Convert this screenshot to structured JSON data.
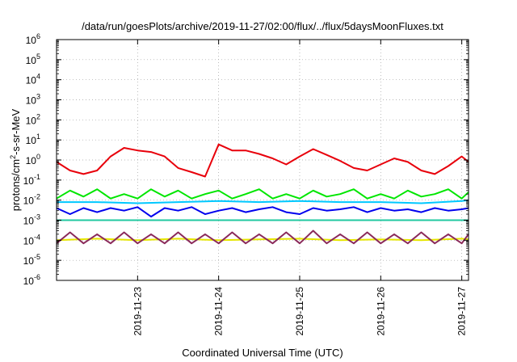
{
  "chart_data": {
    "type": "line",
    "title": "/data/run/goesPlots/archive/2019-11-27/02:00/flux/../flux/5daysMoonFluxes.txt",
    "xlabel": "Coordinated Universal Time (UTC)",
    "ylabel": "protons/cm²-s-sr-MeV",
    "yscale": "log",
    "ylim": [
      1e-06,
      1000000.0
    ],
    "xlim": [
      "2019-11-22 00:00",
      "2019-11-27 02:00"
    ],
    "grid": true,
    "legend": "none",
    "xticks": [
      {
        "x": "2019-11-23 00:00",
        "label": "2019-11-23"
      },
      {
        "x": "2019-11-24 00:00",
        "label": "2019-11-24"
      },
      {
        "x": "2019-11-25 00:00",
        "label": "2019-11-25"
      },
      {
        "x": "2019-11-26 00:00",
        "label": "2019-11-26"
      },
      {
        "x": "2019-11-27 00:00",
        "label": "2019-11-27"
      }
    ],
    "yticks": [
      {
        "base": "10",
        "exp": "-6"
      },
      {
        "base": "10",
        "exp": "-5"
      },
      {
        "base": "10",
        "exp": "-4"
      },
      {
        "base": "10",
        "exp": "-3"
      },
      {
        "base": "10",
        "exp": "-2"
      },
      {
        "base": "10",
        "exp": "-1"
      },
      {
        "base": "10",
        "exp": "0"
      },
      {
        "base": "10",
        "exp": "1"
      },
      {
        "base": "10",
        "exp": "2"
      },
      {
        "base": "10",
        "exp": "3"
      },
      {
        "base": "10",
        "exp": "4"
      },
      {
        "base": "10",
        "exp": "5"
      },
      {
        "base": "10",
        "exp": "6"
      }
    ],
    "series": [
      {
        "color": "#e8000b",
        "x": [
          "2019-11-22 00:00",
          "2019-11-22 04:00",
          "2019-11-22 08:00",
          "2019-11-22 12:00",
          "2019-11-22 16:00",
          "2019-11-22 20:00",
          "2019-11-23 00:00",
          "2019-11-23 04:00",
          "2019-11-23 08:00",
          "2019-11-23 12:00",
          "2019-11-23 16:00",
          "2019-11-23 20:00",
          "2019-11-24 00:00",
          "2019-11-24 04:00",
          "2019-11-24 08:00",
          "2019-11-24 12:00",
          "2019-11-24 16:00",
          "2019-11-24 20:00",
          "2019-11-25 00:00",
          "2019-11-25 04:00",
          "2019-11-25 08:00",
          "2019-11-25 12:00",
          "2019-11-25 16:00",
          "2019-11-25 20:00",
          "2019-11-26 00:00",
          "2019-11-26 04:00",
          "2019-11-26 08:00",
          "2019-11-26 12:00",
          "2019-11-26 16:00",
          "2019-11-26 20:00",
          "2019-11-27 00:00",
          "2019-11-27 02:00"
        ],
        "y": [
          0.8,
          0.3,
          0.2,
          0.3,
          1.5,
          4,
          3,
          2.5,
          1.5,
          0.4,
          0.25,
          0.15,
          6,
          3,
          3,
          2,
          1.2,
          0.6,
          1.5,
          3.5,
          1.8,
          0.9,
          0.4,
          0.3,
          0.6,
          1.2,
          0.8,
          0.3,
          0.2,
          0.5,
          1.5,
          0.8
        ]
      },
      {
        "color": "#00e600",
        "x": [
          "2019-11-22 00:00",
          "2019-11-22 04:00",
          "2019-11-22 08:00",
          "2019-11-22 12:00",
          "2019-11-22 16:00",
          "2019-11-22 20:00",
          "2019-11-23 00:00",
          "2019-11-23 04:00",
          "2019-11-23 08:00",
          "2019-11-23 12:00",
          "2019-11-23 16:00",
          "2019-11-23 20:00",
          "2019-11-24 00:00",
          "2019-11-24 04:00",
          "2019-11-24 08:00",
          "2019-11-24 12:00",
          "2019-11-24 16:00",
          "2019-11-24 20:00",
          "2019-11-25 00:00",
          "2019-11-25 04:00",
          "2019-11-25 08:00",
          "2019-11-25 12:00",
          "2019-11-25 16:00",
          "2019-11-25 20:00",
          "2019-11-26 00:00",
          "2019-11-26 04:00",
          "2019-11-26 08:00",
          "2019-11-26 12:00",
          "2019-11-26 16:00",
          "2019-11-26 20:00",
          "2019-11-27 00:00",
          "2019-11-27 02:00"
        ],
        "y": [
          0.012,
          0.03,
          0.015,
          0.035,
          0.012,
          0.02,
          0.012,
          0.035,
          0.015,
          0.03,
          0.012,
          0.02,
          0.03,
          0.012,
          0.02,
          0.035,
          0.012,
          0.02,
          0.012,
          0.03,
          0.015,
          0.02,
          0.035,
          0.012,
          0.02,
          0.012,
          0.03,
          0.015,
          0.02,
          0.035,
          0.012,
          0.025
        ]
      },
      {
        "color": "#00c8ff",
        "x": [
          "2019-11-22 00:00",
          "2019-11-22 12:00",
          "2019-11-23 00:00",
          "2019-11-23 12:00",
          "2019-11-24 00:00",
          "2019-11-24 12:00",
          "2019-11-25 00:00",
          "2019-11-25 12:00",
          "2019-11-26 00:00",
          "2019-11-26 12:00",
          "2019-11-27 00:00",
          "2019-11-27 02:00"
        ],
        "y": [
          0.008,
          0.008,
          0.007,
          0.008,
          0.009,
          0.008,
          0.009,
          0.008,
          0.008,
          0.007,
          0.009,
          0.01
        ]
      },
      {
        "color": "#0000ee",
        "x": [
          "2019-11-22 00:00",
          "2019-11-22 04:00",
          "2019-11-22 08:00",
          "2019-11-22 12:00",
          "2019-11-22 16:00",
          "2019-11-22 20:00",
          "2019-11-23 00:00",
          "2019-11-23 04:00",
          "2019-11-23 08:00",
          "2019-11-23 12:00",
          "2019-11-23 16:00",
          "2019-11-23 20:00",
          "2019-11-24 00:00",
          "2019-11-24 04:00",
          "2019-11-24 08:00",
          "2019-11-24 12:00",
          "2019-11-24 16:00",
          "2019-11-24 20:00",
          "2019-11-25 00:00",
          "2019-11-25 04:00",
          "2019-11-25 08:00",
          "2019-11-25 12:00",
          "2019-11-25 16:00",
          "2019-11-25 20:00",
          "2019-11-26 00:00",
          "2019-11-26 04:00",
          "2019-11-26 08:00",
          "2019-11-26 12:00",
          "2019-11-26 16:00",
          "2019-11-26 20:00",
          "2019-11-27 00:00",
          "2019-11-27 02:00"
        ],
        "y": [
          0.004,
          0.002,
          0.004,
          0.0025,
          0.004,
          0.003,
          0.0045,
          0.0015,
          0.004,
          0.003,
          0.0045,
          0.002,
          0.003,
          0.004,
          0.0025,
          0.0035,
          0.0045,
          0.0025,
          0.002,
          0.004,
          0.003,
          0.0035,
          0.0045,
          0.0025,
          0.004,
          0.003,
          0.0035,
          0.0025,
          0.004,
          0.003,
          0.0035,
          0.004
        ]
      },
      {
        "color": "#20c8a0",
        "x": [
          "2019-11-22 00:00",
          "2019-11-22 12:00",
          "2019-11-23 00:00",
          "2019-11-23 12:00",
          "2019-11-24 00:00",
          "2019-11-24 12:00",
          "2019-11-25 00:00",
          "2019-11-25 12:00",
          "2019-11-26 00:00",
          "2019-11-26 12:00",
          "2019-11-27 00:00",
          "2019-11-27 02:00"
        ],
        "y": [
          0.001,
          0.001,
          0.001,
          0.001,
          0.001,
          0.001,
          0.001,
          0.001,
          0.001,
          0.001,
          0.001,
          0.001
        ]
      },
      {
        "color": "#e6e600",
        "x": [
          "2019-11-22 00:00",
          "2019-11-22 12:00",
          "2019-11-23 00:00",
          "2019-11-23 12:00",
          "2019-11-24 00:00",
          "2019-11-24 12:00",
          "2019-11-25 00:00",
          "2019-11-25 12:00",
          "2019-11-26 00:00",
          "2019-11-26 12:00",
          "2019-11-27 00:00",
          "2019-11-27 02:00"
        ],
        "y": [
          0.0001,
          0.00012,
          0.0001,
          0.00012,
          0.0001,
          0.00011,
          0.00012,
          0.0001,
          0.00011,
          0.0001,
          0.00012,
          0.00011
        ]
      },
      {
        "color": "#8b2a5a",
        "x": [
          "2019-11-22 00:00",
          "2019-11-22 04:00",
          "2019-11-22 08:00",
          "2019-11-22 12:00",
          "2019-11-22 16:00",
          "2019-11-22 20:00",
          "2019-11-23 00:00",
          "2019-11-23 04:00",
          "2019-11-23 08:00",
          "2019-11-23 12:00",
          "2019-11-23 16:00",
          "2019-11-23 20:00",
          "2019-11-24 00:00",
          "2019-11-24 04:00",
          "2019-11-24 08:00",
          "2019-11-24 12:00",
          "2019-11-24 16:00",
          "2019-11-24 20:00",
          "2019-11-25 00:00",
          "2019-11-25 04:00",
          "2019-11-25 08:00",
          "2019-11-25 12:00",
          "2019-11-25 16:00",
          "2019-11-25 20:00",
          "2019-11-26 00:00",
          "2019-11-26 04:00",
          "2019-11-26 08:00",
          "2019-11-26 12:00",
          "2019-11-26 16:00",
          "2019-11-26 20:00",
          "2019-11-27 00:00",
          "2019-11-27 02:00"
        ],
        "y": [
          7e-05,
          0.00025,
          7e-05,
          0.0002,
          7e-05,
          0.00025,
          7e-05,
          0.0002,
          7e-05,
          0.00025,
          7e-05,
          0.0002,
          7e-05,
          0.00025,
          7e-05,
          0.0002,
          7e-05,
          0.00025,
          7e-05,
          0.0003,
          7e-05,
          0.0002,
          7e-05,
          0.00025,
          7e-05,
          0.0002,
          7e-05,
          0.00025,
          7e-05,
          0.0002,
          7e-05,
          0.0002
        ]
      }
    ]
  }
}
